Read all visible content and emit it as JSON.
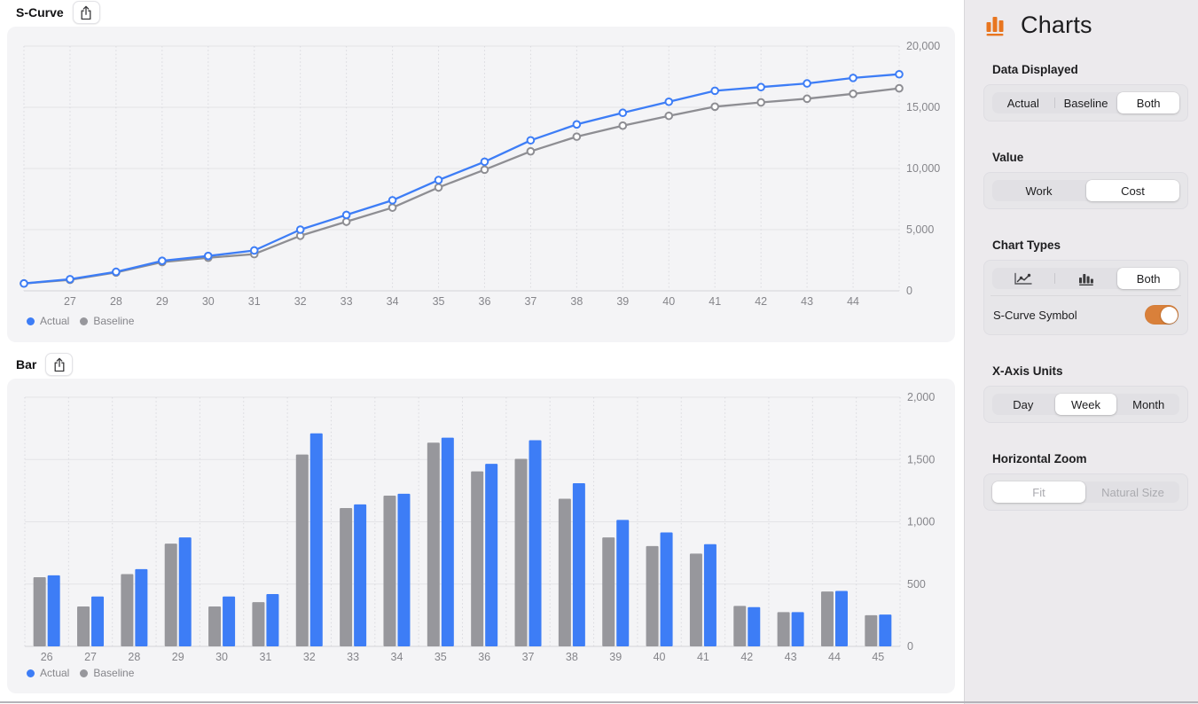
{
  "panels": {
    "scurve_title": "S-Curve",
    "bar_title": "Bar",
    "share_icon": "share-icon"
  },
  "legend": {
    "actual": "Actual",
    "baseline": "Baseline"
  },
  "colors": {
    "actual_blue": "#3d7df6",
    "baseline_gray": "#97979c",
    "panel_bg": "#f4f4f6",
    "sidebar_bg": "#eceaed",
    "accent_orange": "#e8751f",
    "toggle_orange": "#d9803a",
    "tick_text": "#85858a"
  },
  "chart_data": [
    {
      "type": "line",
      "title": "S-Curve",
      "xlabel": "",
      "ylabel": "",
      "x": [
        26,
        27,
        28,
        29,
        30,
        31,
        32,
        33,
        34,
        35,
        36,
        37,
        38,
        39,
        40,
        41,
        42,
        43,
        44,
        45
      ],
      "x_ticks": [
        "27",
        "28",
        "29",
        "30",
        "31",
        "32",
        "33",
        "34",
        "35",
        "36",
        "37",
        "38",
        "39",
        "40",
        "41",
        "42",
        "43",
        "44"
      ],
      "ylim": [
        0,
        20000
      ],
      "y_ticks": [
        {
          "v": 0,
          "label": "0"
        },
        {
          "v": 5000,
          "label": "5,000"
        },
        {
          "v": 10000,
          "label": "10,000"
        },
        {
          "v": 15000,
          "label": "15,000"
        },
        {
          "v": 20000,
          "label": "20,000"
        }
      ],
      "grid": {
        "horizontal": "solid",
        "vertical": "dashed"
      },
      "legend_position": "bottom-left",
      "markers": true,
      "series": [
        {
          "name": "Actual",
          "color": "#3d7df6",
          "values": [
            600,
            950,
            1550,
            2450,
            2850,
            3300,
            5000,
            6200,
            7400,
            9050,
            10550,
            12300,
            13600,
            14550,
            15450,
            16350,
            16650,
            16950,
            17400,
            17700
          ]
        },
        {
          "name": "Baseline",
          "color": "#8e8e93",
          "values": [
            600,
            900,
            1500,
            2350,
            2700,
            3000,
            4500,
            5650,
            6800,
            8450,
            9900,
            11400,
            12600,
            13500,
            14300,
            15050,
            15400,
            15700,
            16100,
            16550
          ]
        }
      ]
    },
    {
      "type": "bar",
      "title": "Bar",
      "xlabel": "",
      "ylabel": "",
      "categories": [
        "26",
        "27",
        "28",
        "29",
        "30",
        "31",
        "32",
        "33",
        "34",
        "35",
        "36",
        "37",
        "38",
        "39",
        "40",
        "41",
        "42",
        "43",
        "44",
        "45"
      ],
      "ylim": [
        0,
        2000
      ],
      "y_ticks": [
        {
          "v": 0,
          "label": "0"
        },
        {
          "v": 500,
          "label": "500"
        },
        {
          "v": 1000,
          "label": "1,000"
        },
        {
          "v": 1500,
          "label": "1,500"
        },
        {
          "v": 2000,
          "label": "2,000"
        }
      ],
      "grid": {
        "horizontal": "solid",
        "vertical": "dashed"
      },
      "legend_position": "bottom-left",
      "series": [
        {
          "name": "Actual",
          "color": "#3d7df6",
          "values": [
            570,
            400,
            620,
            875,
            400,
            420,
            1710,
            1140,
            1225,
            1675,
            1465,
            1655,
            1310,
            1015,
            915,
            820,
            315,
            275,
            445,
            255
          ]
        },
        {
          "name": "Baseline",
          "color": "#97979c",
          "values": [
            555,
            320,
            580,
            825,
            320,
            355,
            1540,
            1110,
            1210,
            1635,
            1405,
            1505,
            1185,
            875,
            805,
            745,
            325,
            275,
            440,
            250
          ]
        }
      ]
    }
  ],
  "sidebar": {
    "title": "Charts",
    "app_icon": "bar-chart-icon",
    "sections": [
      {
        "label": "Data Displayed",
        "type": "segmented",
        "options": [
          {
            "label": "Actual"
          },
          {
            "label": "Baseline"
          },
          {
            "label": "Both"
          }
        ],
        "selected_index": 2
      },
      {
        "label": "Value",
        "type": "segmented",
        "options": [
          {
            "label": "Work"
          },
          {
            "label": "Cost"
          }
        ],
        "selected_index": 1
      },
      {
        "label": "Chart Types",
        "type": "segmented-icons",
        "options": [
          {
            "icon": "line-chart-icon"
          },
          {
            "icon": "bar-chart-icon"
          },
          {
            "label": "Both"
          }
        ],
        "selected_index": 2,
        "toggle": {
          "label": "S-Curve Symbol",
          "state": "on"
        }
      },
      {
        "label": "X-Axis Units",
        "type": "segmented",
        "options": [
          {
            "label": "Day"
          },
          {
            "label": "Week"
          },
          {
            "label": "Month"
          }
        ],
        "selected_index": 1
      },
      {
        "label": "Horizontal Zoom",
        "type": "segmented",
        "disabled": true,
        "options": [
          {
            "label": "Fit"
          },
          {
            "label": "Natural Size"
          }
        ],
        "selected_index": 0
      }
    ]
  }
}
